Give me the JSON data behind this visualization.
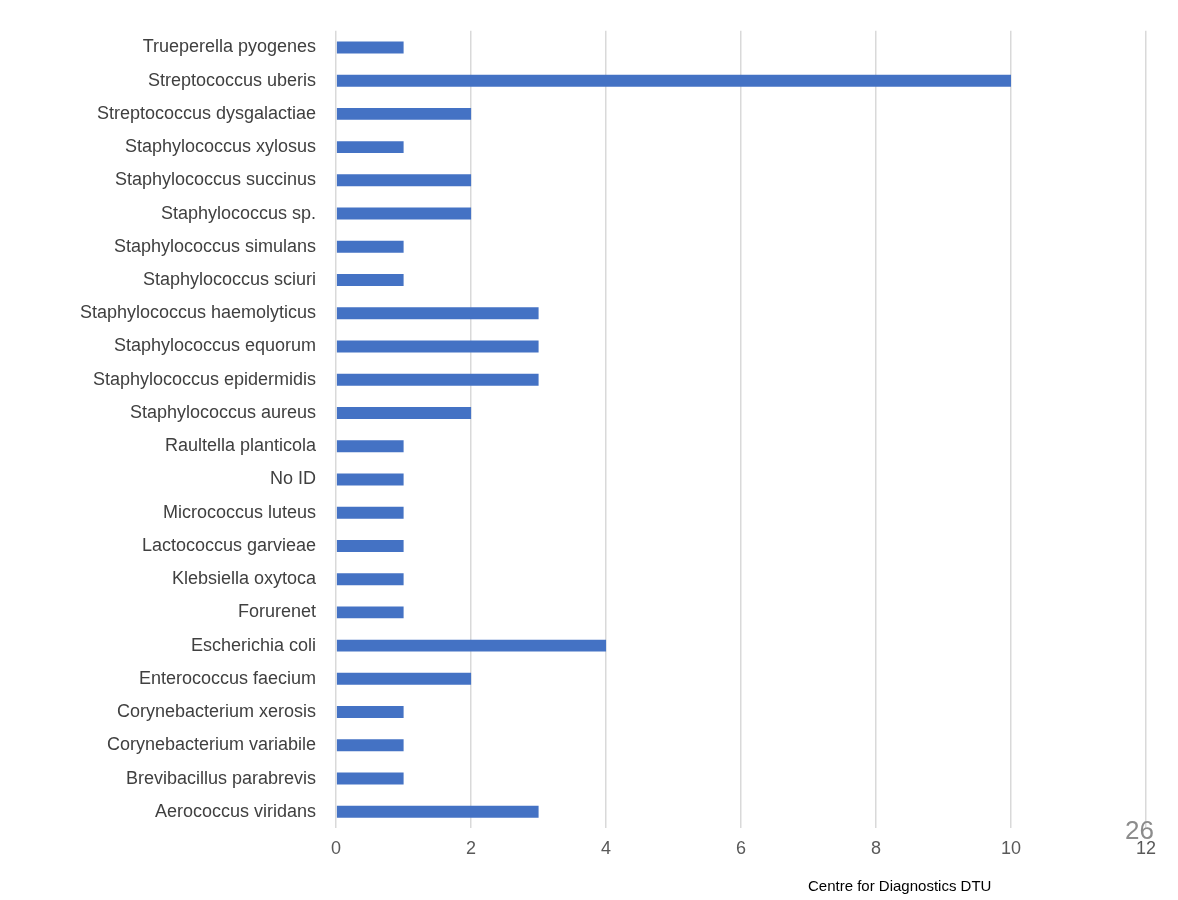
{
  "chart_data": {
    "type": "bar",
    "orientation": "horizontal",
    "categories": [
      "Trueperella pyogenes",
      "Streptococcus uberis",
      "Streptococcus dysgalactiae",
      "Staphylococcus xylosus",
      "Staphylococcus succinus",
      "Staphylococcus sp.",
      "Staphylococcus simulans",
      "Staphylococcus sciuri",
      "Staphylococcus haemolyticus",
      "Staphylococcus equorum",
      "Staphylococcus epidermidis",
      "Staphylococcus aureus",
      "Raultella planticola",
      "No ID",
      "Micrococcus luteus",
      "Lactococcus garvieae",
      "Klebsiella oxytoca",
      "Forurenet",
      "Escherichia coli",
      "Enterococcus faecium",
      "Corynebacterium xerosis",
      "Corynebacterium variabile",
      "Brevibacillus parabrevis",
      "Aerococcus viridans"
    ],
    "values": [
      1,
      10,
      2,
      1,
      2,
      2,
      1,
      1,
      3,
      3,
      3,
      2,
      1,
      1,
      1,
      1,
      1,
      1,
      4,
      2,
      1,
      1,
      1,
      3
    ],
    "color": "#4472c4",
    "xlim": [
      0,
      12
    ],
    "xticks": [
      0,
      2,
      4,
      6,
      8,
      10,
      12
    ],
    "grid": "x",
    "annotations": [
      "26",
      "Centre for Diagnostics DTU"
    ]
  }
}
